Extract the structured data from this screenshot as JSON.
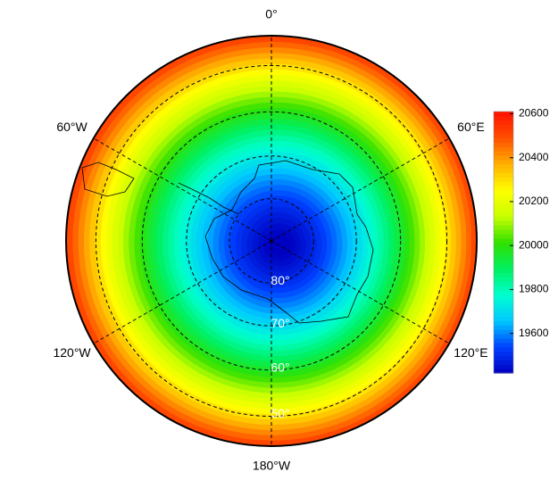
{
  "map": {
    "projection": "south polar stereographic",
    "longitude_labels": [
      {
        "value": 0,
        "label": "0°"
      },
      {
        "value": 60,
        "label": "60°E"
      },
      {
        "value": 120,
        "label": "120°E"
      },
      {
        "value": 180,
        "label": "180°W"
      },
      {
        "value": 240,
        "label": "120°W"
      },
      {
        "value": 300,
        "label": "60°W"
      }
    ],
    "latitude_labels": [
      {
        "value": -80,
        "label": "80°"
      },
      {
        "value": -70,
        "label": "70°"
      },
      {
        "value": -60,
        "label": "60°"
      },
      {
        "value": -50,
        "label": "50°"
      }
    ],
    "colorbar": {
      "lim": [
        19420,
        20610
      ],
      "ticks": [
        19600,
        19800,
        20000,
        20200,
        20400,
        20600
      ],
      "colors": [
        "#0000c0",
        "#0040ff",
        "#00c8ff",
        "#00ffd0",
        "#00f060",
        "#30e000",
        "#c8ff00",
        "#ffff00",
        "#ffb000",
        "#ff5000",
        "#ff1000"
      ]
    }
  }
}
